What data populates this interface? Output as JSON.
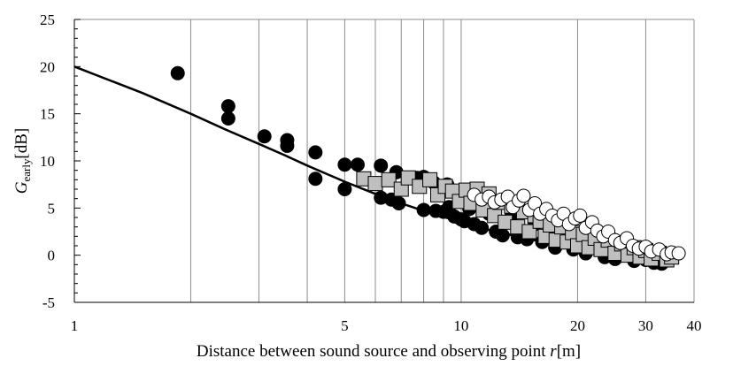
{
  "chart_data": {
    "type": "scatter",
    "title": "",
    "xlabel": {
      "prefix": "Distance between sound source and observing point ",
      "variable": "r",
      "suffix": "[m]"
    },
    "ylabel": {
      "main": "G",
      "subscript": "early",
      "suffix": "[dB]"
    },
    "x_scale": "log",
    "xlim": [
      1,
      40
    ],
    "ylim": [
      -5,
      25
    ],
    "x_ticks": [
      {
        "value": 1,
        "label": "1"
      },
      {
        "value": 5,
        "label": "5"
      },
      {
        "value": 10,
        "label": "10"
      },
      {
        "value": 20,
        "label": "20"
      },
      {
        "value": 30,
        "label": "30"
      },
      {
        "value": 40,
        "label": "40"
      }
    ],
    "y_ticks": [
      {
        "value": -5,
        "label": "-5"
      },
      {
        "value": 0,
        "label": "0"
      },
      {
        "value": 5,
        "label": "5"
      },
      {
        "value": 10,
        "label": "10"
      },
      {
        "value": 15,
        "label": "15"
      },
      {
        "value": 20,
        "label": "20"
      },
      {
        "value": 25,
        "label": "25"
      }
    ],
    "grid": "vertical log-decade lines",
    "legend": "none",
    "series": [
      {
        "marker": "filled-circle",
        "color": "#000000",
        "points": [
          [
            1.85,
            19.3
          ],
          [
            2.5,
            15.8
          ],
          [
            2.5,
            14.5
          ],
          [
            3.1,
            12.6
          ],
          [
            3.55,
            12.2
          ],
          [
            3.55,
            11.6
          ],
          [
            4.2,
            10.9
          ],
          [
            4.2,
            8.1
          ],
          [
            5.0,
            9.6
          ],
          [
            5.0,
            7.0
          ],
          [
            5.4,
            9.6
          ],
          [
            6.2,
            9.5
          ],
          [
            6.2,
            6.1
          ],
          [
            6.6,
            5.9
          ],
          [
            6.8,
            8.8
          ],
          [
            6.9,
            5.5
          ],
          [
            7.7,
            8.2
          ],
          [
            8.0,
            8.3
          ],
          [
            8.0,
            4.8
          ],
          [
            8.5,
            7.7
          ],
          [
            8.6,
            4.7
          ],
          [
            9.0,
            4.6
          ],
          [
            9.2,
            7.5
          ],
          [
            9.3,
            5.1
          ],
          [
            9.6,
            4.1
          ],
          [
            10.0,
            3.8
          ],
          [
            10.2,
            3.6
          ],
          [
            10.5,
            4.9
          ],
          [
            10.8,
            3.3
          ],
          [
            11.3,
            2.9
          ],
          [
            11.8,
            4.4
          ],
          [
            12.3,
            2.5
          ],
          [
            12.8,
            2.1
          ],
          [
            13.4,
            3.9
          ],
          [
            14.0,
            1.9
          ],
          [
            14.8,
            1.7
          ],
          [
            15.5,
            3.3
          ],
          [
            16.2,
            1.4
          ],
          [
            17.5,
            0.8
          ],
          [
            18.5,
            2.4
          ],
          [
            19.5,
            0.6
          ],
          [
            21.0,
            0.2
          ],
          [
            22.0,
            1.5
          ],
          [
            23.5,
            -0.2
          ],
          [
            25.0,
            -0.4
          ],
          [
            26.0,
            0.8
          ],
          [
            28.0,
            -0.6
          ],
          [
            30.0,
            -0.5
          ],
          [
            31.5,
            -0.8
          ],
          [
            33.0,
            -0.9
          ],
          [
            34.5,
            -0.4
          ]
        ]
      },
      {
        "marker": "gray-square",
        "color": "#bfbfbf",
        "points": [
          [
            5.6,
            8.1
          ],
          [
            6.0,
            7.6
          ],
          [
            6.5,
            8.0
          ],
          [
            7.0,
            7.0
          ],
          [
            7.3,
            8.2
          ],
          [
            7.8,
            7.3
          ],
          [
            8.3,
            8.0
          ],
          [
            8.7,
            6.4
          ],
          [
            9.1,
            7.3
          ],
          [
            9.5,
            6.8
          ],
          [
            9.9,
            5.7
          ],
          [
            10.3,
            6.9
          ],
          [
            10.6,
            5.5
          ],
          [
            11.0,
            7.0
          ],
          [
            11.4,
            4.8
          ],
          [
            11.8,
            6.5
          ],
          [
            12.2,
            4.2
          ],
          [
            12.6,
            5.6
          ],
          [
            13.0,
            3.5
          ],
          [
            13.5,
            5.2
          ],
          [
            14.0,
            3.0
          ],
          [
            14.5,
            4.6
          ],
          [
            15.0,
            2.5
          ],
          [
            15.5,
            4.2
          ],
          [
            16.0,
            3.6
          ],
          [
            16.5,
            2.0
          ],
          [
            17.0,
            3.2
          ],
          [
            17.6,
            1.6
          ],
          [
            18.2,
            3.0
          ],
          [
            18.8,
            1.4
          ],
          [
            19.4,
            2.4
          ],
          [
            20.0,
            1.0
          ],
          [
            20.7,
            2.2
          ],
          [
            21.4,
            0.8
          ],
          [
            22.2,
            1.8
          ],
          [
            23.0,
            0.6
          ],
          [
            24.0,
            1.6
          ],
          [
            25.0,
            0.2
          ],
          [
            26.0,
            1.2
          ],
          [
            27.0,
            0.0
          ],
          [
            28.0,
            0.8
          ],
          [
            29.0,
            -0.2
          ],
          [
            30.0,
            0.5
          ],
          [
            31.0,
            -0.4
          ],
          [
            32.5,
            0.2
          ],
          [
            34.0,
            -0.5
          ],
          [
            35.0,
            -0.2
          ]
        ]
      },
      {
        "marker": "open-circle",
        "color": "#ffffff",
        "points": [
          [
            10.8,
            6.4
          ],
          [
            11.3,
            5.9
          ],
          [
            11.8,
            6.2
          ],
          [
            12.2,
            5.6
          ],
          [
            12.7,
            5.9
          ],
          [
            13.2,
            6.2
          ],
          [
            13.6,
            5.1
          ],
          [
            14.1,
            5.8
          ],
          [
            14.5,
            6.3
          ],
          [
            15.0,
            4.8
          ],
          [
            15.5,
            5.5
          ],
          [
            16.0,
            4.4
          ],
          [
            16.6,
            4.9
          ],
          [
            17.2,
            4.2
          ],
          [
            17.8,
            3.7
          ],
          [
            18.4,
            4.4
          ],
          [
            19.0,
            3.3
          ],
          [
            19.7,
            3.9
          ],
          [
            20.3,
            4.2
          ],
          [
            21.0,
            2.9
          ],
          [
            21.8,
            3.5
          ],
          [
            22.5,
            2.6
          ],
          [
            23.3,
            2.0
          ],
          [
            24.0,
            2.5
          ],
          [
            25.0,
            1.6
          ],
          [
            25.8,
            1.3
          ],
          [
            26.8,
            1.8
          ],
          [
            27.8,
            1.0
          ],
          [
            28.8,
            0.7
          ],
          [
            30.0,
            0.9
          ],
          [
            31.0,
            0.4
          ],
          [
            32.5,
            0.6
          ],
          [
            34.0,
            0.1
          ],
          [
            35.0,
            0.3
          ],
          [
            36.5,
            0.2
          ]
        ]
      }
    ],
    "curves": [
      {
        "style": "solid",
        "color": "#000000",
        "points": [
          [
            1.0,
            20.0
          ],
          [
            1.5,
            17.2
          ],
          [
            2.0,
            15.0
          ],
          [
            2.5,
            13.2
          ],
          [
            3.0,
            11.8
          ],
          [
            3.5,
            10.6
          ],
          [
            4.0,
            9.5
          ],
          [
            5.0,
            7.8
          ],
          [
            6.0,
            6.5
          ],
          [
            7.0,
            5.5
          ],
          [
            8.0,
            4.7
          ],
          [
            10.0,
            3.5
          ],
          [
            12.0,
            2.6
          ],
          [
            15.0,
            1.7
          ],
          [
            20.0,
            0.7
          ],
          [
            25.0,
            0.0
          ],
          [
            30.0,
            -0.5
          ],
          [
            35.0,
            -0.9
          ]
        ]
      }
    ]
  }
}
